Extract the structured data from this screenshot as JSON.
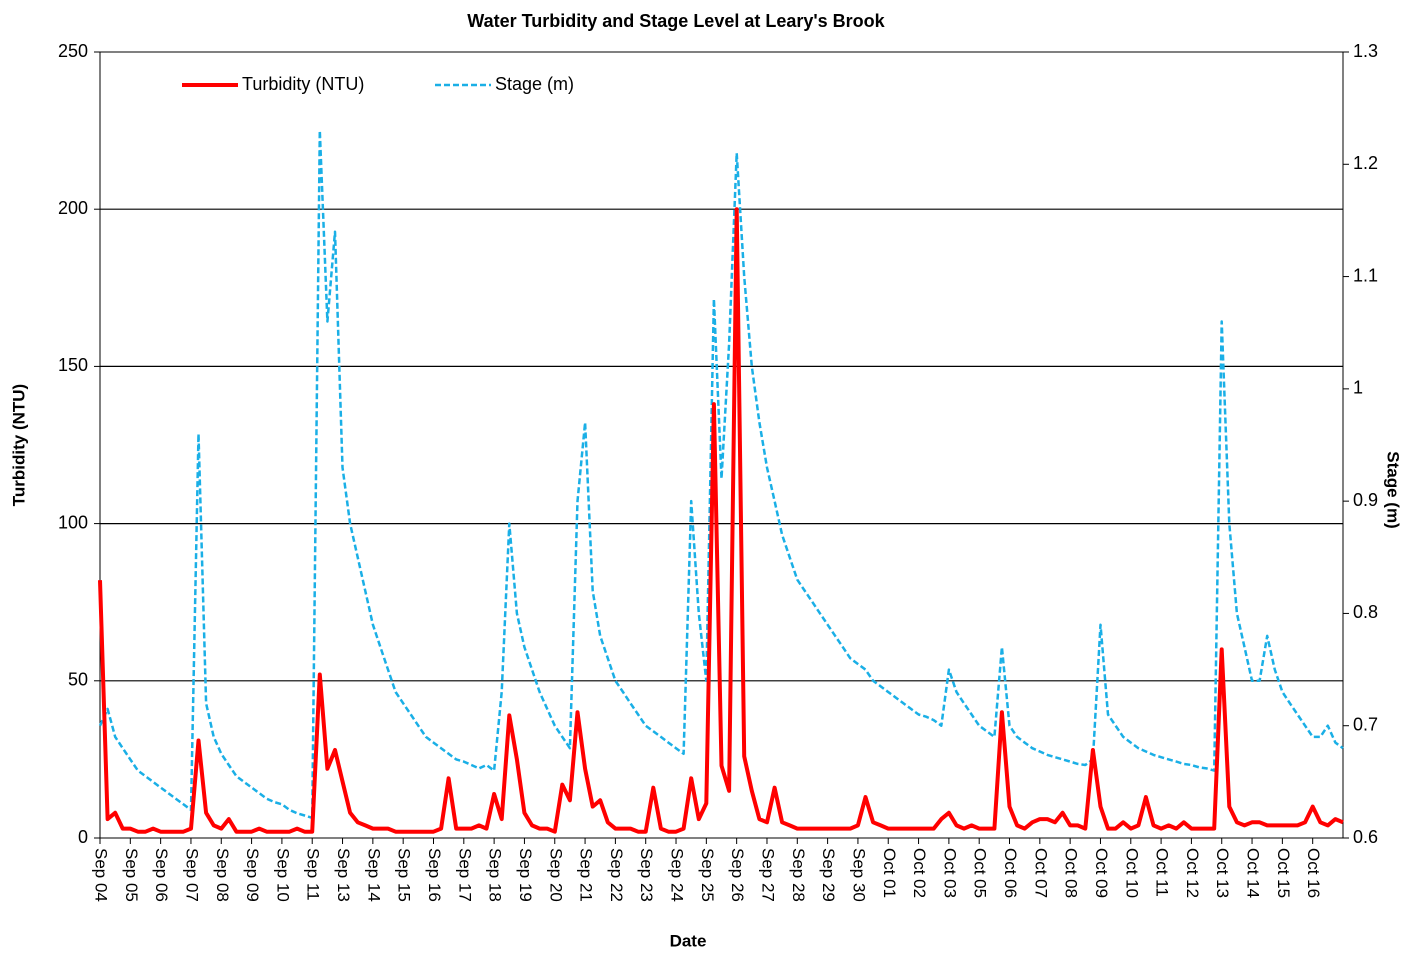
{
  "chart_data": {
    "type": "line",
    "title": "Water Turbidity and Stage Level at Leary's Brook",
    "x_label": "Date",
    "y_label": "Turbidity (NTU)",
    "y2_label": "Stage (m)",
    "categories": [
      "Sep 04",
      null,
      null,
      null,
      "Sep 05",
      null,
      null,
      null,
      "Sep 06",
      null,
      null,
      null,
      "Sep 07",
      null,
      null,
      null,
      "Sep 08",
      null,
      null,
      null,
      "Sep 09",
      null,
      null,
      null,
      "Sep 10",
      null,
      null,
      null,
      "Sep 11",
      null,
      null,
      null,
      "Sep 13",
      null,
      null,
      null,
      "Sep 14",
      null,
      null,
      null,
      "Sep 15",
      null,
      null,
      null,
      "Sep 16",
      null,
      null,
      null,
      "Sep 17",
      null,
      null,
      null,
      "Sep 18",
      null,
      null,
      null,
      "Sep 19",
      null,
      null,
      null,
      "Sep 20",
      null,
      null,
      null,
      "Sep 21",
      null,
      null,
      null,
      "Sep 22",
      null,
      null,
      null,
      "Sep 23",
      null,
      null,
      null,
      "Sep 24",
      null,
      null,
      null,
      "Sep 25",
      null,
      null,
      null,
      "Sep 26",
      null,
      null,
      null,
      "Sep 27",
      null,
      null,
      null,
      "Sep 28",
      null,
      null,
      null,
      "Sep 29",
      null,
      null,
      null,
      "Sep 30",
      null,
      null,
      null,
      "Oct 01",
      null,
      null,
      null,
      "Oct 02",
      null,
      null,
      null,
      "Oct 03",
      null,
      null,
      null,
      "Oct 05",
      null,
      null,
      null,
      "Oct 06",
      null,
      null,
      null,
      "Oct 07",
      null,
      null,
      null,
      "Oct 08",
      null,
      null,
      null,
      "Oct 09",
      null,
      null,
      null,
      "Oct 10",
      null,
      null,
      null,
      "Oct 11",
      null,
      null,
      null,
      "Oct 12",
      null,
      null,
      null,
      "Oct 13",
      null,
      null,
      null,
      "Oct 14",
      null,
      null,
      null,
      "Oct 15",
      null,
      null,
      null,
      "Oct 16",
      null,
      null,
      null,
      null
    ],
    "series": [
      {
        "name": "Turbidity (NTU)",
        "color": "#ff0000",
        "dash": false,
        "values": [
          82,
          6,
          8,
          3,
          3,
          2,
          2,
          3,
          2,
          2,
          2,
          2,
          3,
          31,
          8,
          4,
          3,
          6,
          2,
          2,
          2,
          3,
          2,
          2,
          2,
          2,
          3,
          2,
          2,
          52,
          22,
          28,
          18,
          8,
          5,
          4,
          3,
          3,
          3,
          2,
          2,
          2,
          2,
          2,
          2,
          3,
          19,
          3,
          3,
          3,
          4,
          3,
          14,
          6,
          39,
          25,
          8,
          4,
          3,
          3,
          2,
          17,
          12,
          40,
          22,
          10,
          12,
          5,
          3,
          3,
          3,
          2,
          2,
          16,
          3,
          2,
          2,
          3,
          19,
          6,
          11,
          138,
          23,
          15,
          200,
          26,
          15,
          6,
          5,
          16,
          5,
          4,
          3,
          3,
          3,
          3,
          3,
          3,
          3,
          3,
          4,
          13,
          5,
          4,
          3,
          3,
          3,
          3,
          3,
          3,
          3,
          6,
          8,
          4,
          3,
          4,
          3,
          3,
          3,
          40,
          10,
          4,
          3,
          5,
          6,
          6,
          5,
          8,
          4,
          4,
          3,
          28,
          10,
          3,
          3,
          5,
          3,
          4,
          13,
          4,
          3,
          4,
          3,
          5,
          3,
          3,
          3,
          3,
          60,
          10,
          5,
          4,
          5,
          5,
          4,
          4,
          4,
          4,
          4,
          5,
          10,
          5,
          4,
          6,
          5
        ]
      },
      {
        "name": "Stage (m)",
        "color": "#1aafe6",
        "dash": true,
        "axis": "y2",
        "values": [
          0.7,
          0.715,
          0.69,
          0.68,
          0.67,
          0.66,
          0.655,
          0.65,
          0.645,
          0.64,
          0.635,
          0.63,
          0.625,
          0.96,
          0.72,
          0.69,
          0.675,
          0.665,
          0.655,
          0.65,
          0.645,
          0.64,
          0.635,
          0.632,
          0.63,
          0.625,
          0.622,
          0.62,
          0.618,
          1.23,
          1.06,
          1.14,
          0.93,
          0.88,
          0.85,
          0.82,
          0.79,
          0.77,
          0.75,
          0.73,
          0.72,
          0.71,
          0.7,
          0.69,
          0.685,
          0.68,
          0.675,
          0.67,
          0.668,
          0.665,
          0.662,
          0.665,
          0.66,
          0.73,
          0.88,
          0.8,
          0.77,
          0.75,
          0.73,
          0.715,
          0.7,
          0.69,
          0.68,
          0.9,
          0.97,
          0.82,
          0.78,
          0.76,
          0.74,
          0.73,
          0.72,
          0.71,
          0.7,
          0.695,
          0.69,
          0.685,
          0.68,
          0.675,
          0.9,
          0.8,
          0.74,
          1.08,
          0.92,
          1.04,
          1.21,
          1.1,
          1.02,
          0.97,
          0.93,
          0.9,
          0.87,
          0.85,
          0.83,
          0.82,
          0.81,
          0.8,
          0.79,
          0.78,
          0.77,
          0.76,
          0.755,
          0.75,
          0.74,
          0.735,
          0.73,
          0.725,
          0.72,
          0.715,
          0.71,
          0.708,
          0.705,
          0.7,
          0.75,
          0.73,
          0.72,
          0.71,
          0.7,
          0.695,
          0.69,
          0.77,
          0.7,
          0.69,
          0.685,
          0.68,
          0.677,
          0.674,
          0.672,
          0.67,
          0.668,
          0.666,
          0.665,
          0.67,
          0.79,
          0.71,
          0.7,
          0.69,
          0.685,
          0.68,
          0.677,
          0.674,
          0.672,
          0.67,
          0.668,
          0.666,
          0.665,
          0.663,
          0.662,
          0.66,
          1.06,
          0.88,
          0.8,
          0.77,
          0.74,
          0.74,
          0.78,
          0.75,
          0.73,
          0.72,
          0.71,
          0.7,
          0.69,
          0.69,
          0.7,
          0.685,
          0.68
        ]
      }
    ],
    "ylim": [
      0,
      250
    ],
    "yticks": [
      0,
      50,
      100,
      150,
      200,
      250
    ],
    "y2lim": [
      0.6,
      1.3
    ],
    "y2ticks": [
      0.6,
      0.7,
      0.8,
      0.9,
      1,
      1.1,
      1.2,
      1.3
    ],
    "grid": true,
    "legend": "top-left"
  }
}
